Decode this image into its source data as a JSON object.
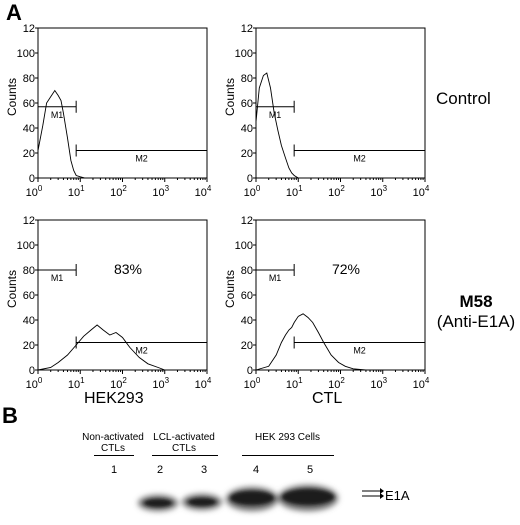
{
  "panel_a": {
    "letter": "A"
  },
  "panel_b": {
    "letter": "B"
  },
  "row_labels": {
    "control": "Control",
    "m58_bold": "M58",
    "m58_sub": "(Anti-E1A)"
  },
  "col_labels": {
    "left": "HEK293",
    "right": "CTL"
  },
  "histogram_axis": {
    "ylabel": "Counts",
    "y_ticks": [
      "0",
      "20",
      "40",
      "60",
      "80",
      "100",
      "12"
    ],
    "x_ticks": [
      {
        "base": "10",
        "exp": "0"
      },
      {
        "base": "10",
        "exp": "1"
      },
      {
        "base": "10",
        "exp": "2"
      },
      {
        "base": "10",
        "exp": "3"
      },
      {
        "base": "10",
        "exp": "4"
      }
    ]
  },
  "chart_data": [
    {
      "type": "area",
      "panel": "HEK293 / Control",
      "xscale": "log",
      "xlim": [
        1,
        10000
      ],
      "ylim": [
        0,
        120
      ],
      "ylabel": "Counts",
      "markers": [
        {
          "name": "M1",
          "range": [
            1,
            8
          ],
          "y": 57
        },
        {
          "name": "M2",
          "range": [
            8,
            10000
          ],
          "y": 22
        }
      ],
      "percent_label": "",
      "x": [
        1,
        1.3,
        1.6,
        2,
        2.5,
        3,
        3.5,
        4,
        5,
        6,
        7,
        8,
        10,
        13
      ],
      "y": [
        22,
        42,
        60,
        65,
        70,
        66,
        62,
        52,
        32,
        14,
        6,
        2,
        1,
        0
      ]
    },
    {
      "type": "area",
      "panel": "CTL / Control",
      "xscale": "log",
      "xlim": [
        1,
        10000
      ],
      "ylim": [
        0,
        120
      ],
      "ylabel": "Counts",
      "markers": [
        {
          "name": "M1",
          "range": [
            1,
            8
          ],
          "y": 57
        },
        {
          "name": "M2",
          "range": [
            8,
            10000
          ],
          "y": 22
        }
      ],
      "percent_label": "",
      "x": [
        1,
        1.2,
        1.5,
        1.8,
        2.2,
        2.7,
        3.3,
        4,
        5,
        6,
        7,
        8,
        10
      ],
      "y": [
        45,
        72,
        82,
        84,
        72,
        52,
        38,
        26,
        16,
        8,
        4,
        2,
        0
      ]
    },
    {
      "type": "area",
      "panel": "HEK293 / M58 (Anti-E1A)",
      "xscale": "log",
      "xlim": [
        1,
        10000
      ],
      "ylim": [
        0,
        120
      ],
      "ylabel": "Counts",
      "markers": [
        {
          "name": "M1",
          "range": [
            1,
            8
          ],
          "y": 80
        },
        {
          "name": "M2",
          "range": [
            8,
            10000
          ],
          "y": 22
        }
      ],
      "percent_label": "83%",
      "x": [
        1,
        2,
        3,
        5,
        8,
        12,
        18,
        25,
        35,
        50,
        70,
        100,
        150,
        250,
        400,
        700,
        1000
      ],
      "y": [
        0,
        2,
        6,
        12,
        20,
        27,
        32,
        36,
        32,
        28,
        30,
        26,
        18,
        10,
        5,
        2,
        0
      ]
    },
    {
      "type": "area",
      "panel": "CTL / M58 (Anti-E1A)",
      "xscale": "log",
      "xlim": [
        1,
        10000
      ],
      "ylim": [
        0,
        120
      ],
      "ylabel": "Counts",
      "markers": [
        {
          "name": "M1",
          "range": [
            1,
            8
          ],
          "y": 80
        },
        {
          "name": "M2",
          "range": [
            8,
            10000
          ],
          "y": 22
        }
      ],
      "percent_label": "72%",
      "x": [
        1,
        2,
        3,
        4,
        5,
        6,
        7,
        8,
        10,
        13,
        17,
        22,
        30,
        40,
        60,
        90,
        130,
        200,
        400
      ],
      "y": [
        0,
        3,
        12,
        22,
        28,
        32,
        34,
        38,
        43,
        45,
        42,
        38,
        30,
        22,
        12,
        6,
        3,
        1,
        0
      ]
    }
  ],
  "blot": {
    "groups": [
      {
        "line1": "Non-activated",
        "line2": "CTLs"
      },
      {
        "line1": "LCL-activated",
        "line2": "CTLs"
      },
      {
        "line1": "HEK 293 Cells",
        "line2": ""
      }
    ],
    "lanes": [
      "1",
      "2",
      "3",
      "4",
      "5"
    ],
    "band_label": "E1A"
  }
}
